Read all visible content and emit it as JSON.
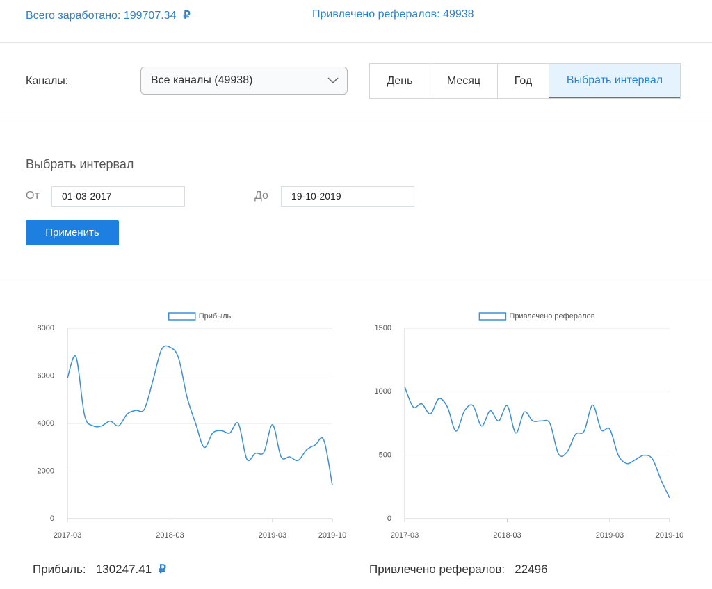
{
  "header": {
    "earned_label": "Всего заработано:",
    "earned_value": "199707.34",
    "currency": "₽",
    "referrals_label": "Привлечено рефералов:",
    "referrals_value": "49938"
  },
  "filters": {
    "channels_label": "Каналы:",
    "channel_select": "Все каналы (49938)",
    "periods": [
      "День",
      "Месяц",
      "Год",
      "Выбрать интервал"
    ],
    "active_period": 3
  },
  "interval": {
    "title": "Выбрать интервал",
    "from_label": "От",
    "from_value": "01-03-2017",
    "to_label": "До",
    "to_value": "19-10-2019",
    "apply": "Применить"
  },
  "chart_data": [
    {
      "type": "line",
      "categories": [
        "2017-03",
        null,
        null,
        null,
        null,
        null,
        null,
        null,
        null,
        null,
        null,
        null,
        "2018-03",
        null,
        null,
        null,
        null,
        null,
        null,
        null,
        null,
        null,
        null,
        null,
        "2019-03",
        null,
        null,
        null,
        null,
        null,
        null,
        "2019-10"
      ],
      "series": [
        {
          "name": "Прибыль",
          "color": "#3d8fd6",
          "values": [
            5900,
            6800,
            4350,
            3900,
            3900,
            4100,
            3900,
            4400,
            4550,
            4600,
            5800,
            7100,
            7200,
            6750,
            5100,
            4000,
            3000,
            3600,
            3700,
            3600,
            4000,
            2500,
            2750,
            2800,
            3950,
            2600,
            2600,
            2450,
            2900,
            3100,
            3300,
            1400
          ]
        }
      ],
      "ylim": [
        0,
        8000
      ],
      "yticks": [
        0,
        2000,
        4000,
        6000,
        8000
      ],
      "grid": true
    },
    {
      "type": "line",
      "categories": [
        "2017-03",
        null,
        null,
        null,
        null,
        null,
        null,
        null,
        null,
        null,
        null,
        null,
        "2018-03",
        null,
        null,
        null,
        null,
        null,
        null,
        null,
        null,
        null,
        null,
        null,
        "2019-03",
        null,
        null,
        null,
        null,
        null,
        null,
        "2019-10"
      ],
      "series": [
        {
          "name": "Привлечено рефералов",
          "color": "#3d8fd6",
          "values": [
            1040,
            880,
            905,
            825,
            945,
            880,
            690,
            850,
            890,
            730,
            850,
            770,
            890,
            675,
            840,
            770,
            770,
            750,
            510,
            525,
            665,
            690,
            895,
            700,
            705,
            500,
            435,
            465,
            500,
            470,
            305,
            165
          ]
        }
      ],
      "ylim": [
        0,
        1500
      ],
      "yticks": [
        0,
        500,
        1000,
        1500
      ],
      "grid": true
    }
  ],
  "totals": [
    {
      "label": "Прибыль:",
      "value": "130247.41",
      "currency": "₽"
    },
    {
      "label": "Привлечено рефералов:",
      "value": "22496"
    }
  ]
}
